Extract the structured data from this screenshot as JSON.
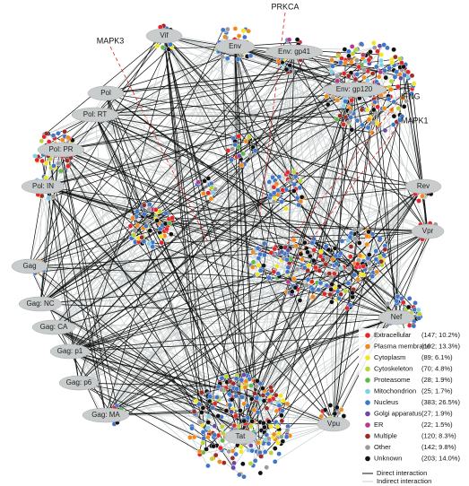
{
  "annotations": [
    "PRKCA",
    "MAPK3",
    "IFNG",
    "MAPK1"
  ],
  "nodes": [
    {
      "label": "Vif"
    },
    {
      "label": "Env"
    },
    {
      "label": "Env: gp41"
    },
    {
      "label": "Env: gp120"
    },
    {
      "label": "Pol"
    },
    {
      "label": "Pol: RT"
    },
    {
      "label": "Pol: PR"
    },
    {
      "label": "Pol: IN"
    },
    {
      "label": "Gag"
    },
    {
      "label": "Gag: NC"
    },
    {
      "label": "Gag: CA"
    },
    {
      "label": "Gag: p1"
    },
    {
      "label": "Gag: p6"
    },
    {
      "label": "Gag: MA"
    },
    {
      "label": "Tat"
    },
    {
      "label": "Rev"
    },
    {
      "label": "Vpr"
    },
    {
      "label": "Nef"
    },
    {
      "label": "Vpu"
    }
  ],
  "legend": {
    "items": [
      {
        "label": "Extracellular",
        "count": "(147; 10.2%)",
        "color": "#e3262a"
      },
      {
        "label": "Plasma membrane",
        "count": "(192; 13.3%)",
        "color": "#f08a1c"
      },
      {
        "label": "Cytoplasm",
        "count": "(89; 6.1%)",
        "color": "#f2e61e"
      },
      {
        "label": "Cytoskeleton",
        "count": "(70; 4.8%)",
        "color": "#b9d531"
      },
      {
        "label": "Proteasome",
        "count": "(28; 1.9%)",
        "color": "#5cb947"
      },
      {
        "label": "Mitochondrion",
        "count": "(25; 1.7%)",
        "color": "#7fd0e6"
      },
      {
        "label": "Nucleus",
        "count": "(383; 26.5%)",
        "color": "#3f76c8"
      },
      {
        "label": "Golgi apparatus",
        "count": "(27; 1.9%)",
        "color": "#6a4aa0"
      },
      {
        "label": "ER",
        "count": "(22; 1.5%)",
        "color": "#b23a8f"
      },
      {
        "label": "Multiple",
        "count": "(120; 8.3%)",
        "color": "#9a2b25"
      },
      {
        "label": "Other",
        "count": "(142; 9.8%)",
        "color": "#9a9a9a"
      },
      {
        "label": "Unknown",
        "count": "(203; 14.0%)",
        "color": "#111111"
      }
    ],
    "lines": [
      "Direct interaction",
      "Indirect interaction"
    ]
  }
}
